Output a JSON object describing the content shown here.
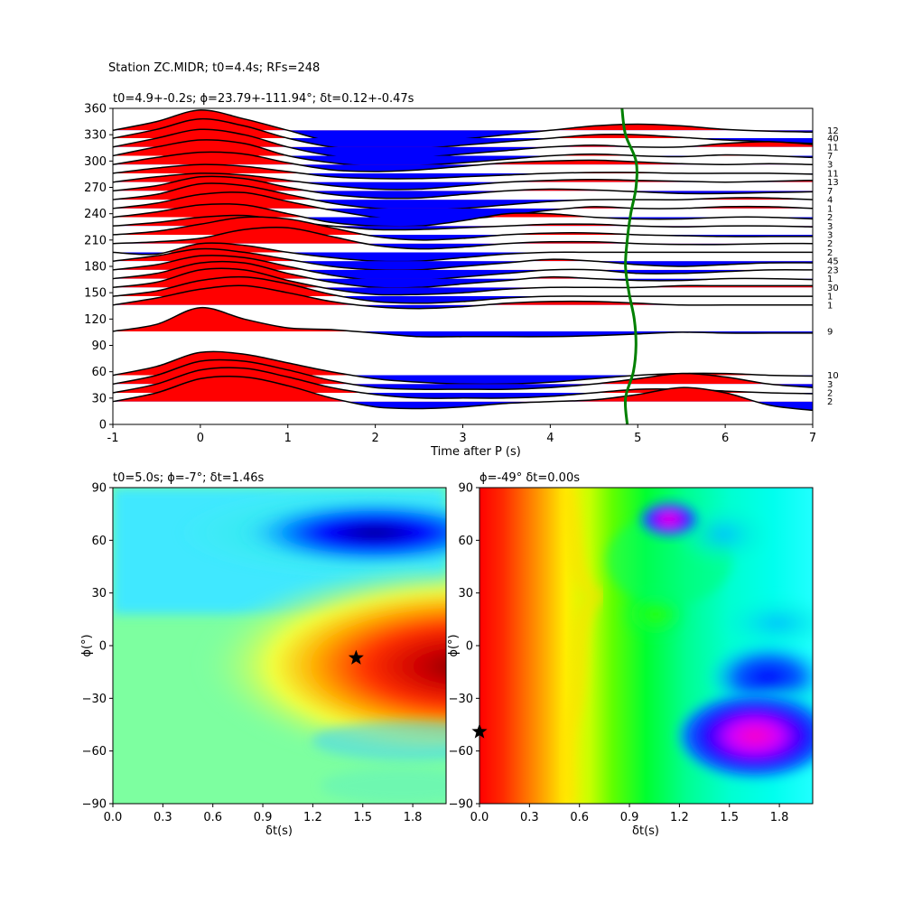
{
  "figure_title": "Station ZC.MIDR; t0=4.4s; RFs=248",
  "colors": {
    "positive_fill": "#ff0000",
    "negative_fill": "#0000ff",
    "trace_line": "#000000",
    "t0_curve": "#008000",
    "colormap": "jet (left) / hsv (right)"
  },
  "chart_data": [
    {
      "type": "line",
      "subtype": "wiggle-traces-by-backazimuth",
      "title": "t0=4.9+-0.2s; ϕ=23.79+-111.94°; δt=0.12+-0.47s",
      "xlabel": "Time after P (s)",
      "ylabel": "",
      "xlim": [
        -1,
        7
      ],
      "ylim": [
        0,
        360
      ],
      "xticks": [
        "-1",
        "0",
        "1",
        "2",
        "3",
        "4",
        "5",
        "6",
        "7"
      ],
      "yticks": [
        "0",
        "30",
        "60",
        "90",
        "120",
        "150",
        "180",
        "210",
        "240",
        "270",
        "300",
        "330",
        "360"
      ],
      "grid": false,
      "legend": "none",
      "trace_x_grid": [
        -1.0,
        -0.5,
        0.0,
        0.5,
        1.0,
        1.5,
        2.0,
        2.5,
        3.0,
        3.5,
        4.0,
        4.5,
        5.0,
        5.5,
        6.0,
        6.5,
        7.0
      ],
      "traces": [
        {
          "baz": 335,
          "count": "12",
          "y": [
            335,
            345,
            358,
            348,
            335,
            322,
            320,
            322,
            325,
            330,
            335,
            340,
            342,
            340,
            336,
            334,
            333
          ]
        },
        {
          "baz": 326,
          "count": "40",
          "y": [
            326,
            336,
            348,
            340,
            326,
            316,
            312,
            314,
            318,
            322,
            326,
            330,
            330,
            327,
            324,
            322,
            320
          ]
        },
        {
          "baz": 316,
          "count": "11",
          "y": [
            316,
            326,
            336,
            330,
            316,
            306,
            302,
            304,
            308,
            312,
            316,
            318,
            316,
            316,
            320,
            322,
            319
          ]
        },
        {
          "baz": 306,
          "count": "7",
          "y": [
            306,
            316,
            324,
            320,
            306,
            298,
            294,
            295,
            298,
            302,
            306,
            308,
            306,
            305,
            307,
            306,
            304
          ]
        },
        {
          "baz": 296,
          "count": "3",
          "y": [
            296,
            304,
            310,
            308,
            298,
            290,
            288,
            290,
            294,
            298,
            300,
            301,
            299,
            297,
            296,
            297,
            296
          ]
        },
        {
          "baz": 286,
          "count": "11",
          "y": [
            286,
            292,
            296,
            294,
            288,
            282,
            280,
            280,
            282,
            284,
            286,
            287,
            287,
            286,
            286,
            286,
            285
          ]
        },
        {
          "baz": 276,
          "count": "13",
          "y": [
            276,
            282,
            286,
            284,
            278,
            272,
            268,
            268,
            272,
            276,
            278,
            279,
            278,
            277,
            276,
            277,
            278
          ]
        },
        {
          "baz": 266,
          "count": "7",
          "y": [
            266,
            272,
            282,
            280,
            270,
            262,
            258,
            258,
            262,
            266,
            268,
            267,
            265,
            263,
            263,
            264,
            265
          ]
        },
        {
          "baz": 256,
          "count": "4",
          "y": [
            256,
            262,
            274,
            272,
            262,
            252,
            246,
            244,
            246,
            250,
            254,
            256,
            256,
            256,
            258,
            258,
            256
          ]
        },
        {
          "baz": 246,
          "count": "1",
          "y": [
            246,
            252,
            262,
            264,
            254,
            244,
            236,
            232,
            234,
            238,
            244,
            248,
            246,
            246,
            248,
            248,
            246
          ]
        },
        {
          "baz": 236,
          "count": "2",
          "y": [
            236,
            242,
            250,
            250,
            240,
            230,
            226,
            226,
            232,
            240,
            240,
            236,
            234,
            234,
            236,
            236,
            234
          ]
        },
        {
          "baz": 226,
          "count": "3",
          "y": [
            226,
            230,
            236,
            238,
            232,
            226,
            222,
            222,
            224,
            226,
            228,
            228,
            226,
            225,
            226,
            226,
            225
          ]
        },
        {
          "baz": 216,
          "count": "3",
          "y": [
            216,
            220,
            228,
            236,
            234,
            224,
            214,
            210,
            212,
            216,
            218,
            218,
            216,
            215,
            214,
            214,
            214
          ]
        },
        {
          "baz": 206,
          "count": "2",
          "y": [
            206,
            208,
            212,
            222,
            224,
            214,
            204,
            200,
            202,
            206,
            208,
            208,
            206,
            205,
            205,
            206,
            206
          ]
        },
        {
          "baz": 196,
          "count": "2",
          "y": [
            196,
            194,
            206,
            204,
            196,
            190,
            186,
            186,
            190,
            194,
            196,
            196,
            196,
            196,
            196,
            196,
            196
          ]
        },
        {
          "baz": 186,
          "count": "45",
          "y": [
            186,
            192,
            200,
            196,
            188,
            180,
            176,
            176,
            180,
            184,
            188,
            186,
            182,
            180,
            182,
            184,
            184
          ]
        },
        {
          "baz": 176,
          "count": "23",
          "y": [
            176,
            182,
            192,
            190,
            180,
            170,
            164,
            164,
            168,
            172,
            176,
            176,
            172,
            172,
            174,
            176,
            176
          ]
        },
        {
          "baz": 166,
          "count": "1",
          "y": [
            166,
            172,
            184,
            184,
            172,
            162,
            156,
            156,
            160,
            164,
            168,
            166,
            164,
            164,
            166,
            166,
            165
          ]
        },
        {
          "baz": 156,
          "count": "30",
          "y": [
            156,
            162,
            176,
            176,
            164,
            154,
            148,
            148,
            150,
            154,
            156,
            156,
            156,
            158,
            158,
            158,
            158
          ]
        },
        {
          "baz": 146,
          "count": "1",
          "y": [
            146,
            152,
            164,
            168,
            160,
            148,
            140,
            138,
            140,
            144,
            146,
            146,
            146,
            146,
            146,
            146,
            146
          ]
        },
        {
          "baz": 136,
          "count": "1",
          "y": [
            136,
            144,
            154,
            158,
            150,
            140,
            134,
            132,
            134,
            138,
            140,
            140,
            138,
            136,
            136,
            136,
            136
          ]
        },
        {
          "baz": 106,
          "count": "9",
          "y": [
            106,
            114,
            133,
            120,
            110,
            108,
            104,
            100,
            100,
            100,
            100,
            101,
            103,
            105,
            104,
            104,
            104
          ]
        },
        {
          "baz": 56,
          "count": "10",
          "y": [
            56,
            66,
            82,
            80,
            70,
            60,
            52,
            48,
            46,
            46,
            48,
            52,
            56,
            58,
            58,
            56,
            55
          ]
        },
        {
          "baz": 46,
          "count": "3",
          "y": [
            46,
            56,
            72,
            72,
            62,
            50,
            42,
            40,
            40,
            40,
            42,
            46,
            52,
            58,
            54,
            46,
            42
          ]
        },
        {
          "baz": 36,
          "count": "2",
          "y": [
            36,
            46,
            62,
            64,
            54,
            42,
            34,
            30,
            30,
            30,
            32,
            36,
            40,
            40,
            38,
            36,
            35
          ]
        },
        {
          "baz": 26,
          "count": "2",
          "y": [
            26,
            36,
            52,
            54,
            44,
            30,
            20,
            18,
            20,
            24,
            26,
            28,
            34,
            42,
            36,
            22,
            16
          ]
        }
      ],
      "t0_curve": {
        "baz": [
          0,
          30,
          60,
          90,
          120,
          150,
          180,
          210,
          240,
          270,
          300,
          330,
          360
        ],
        "t": [
          4.88,
          4.86,
          4.95,
          4.98,
          4.96,
          4.9,
          4.86,
          4.88,
          4.92,
          4.98,
          4.98,
          4.86,
          4.82
        ]
      }
    },
    {
      "type": "heatmap",
      "title": "t0=5.0s; ϕ=-7°; δt=1.46s",
      "xlabel": "δt(s)",
      "ylabel": "ϕ(°)",
      "xlim": [
        0,
        2
      ],
      "ylim": [
        -90,
        90
      ],
      "xticks": [
        "0.0",
        "0.3",
        "0.6",
        "0.9",
        "1.2",
        "1.5",
        "1.8"
      ],
      "yticks": [
        "−90",
        "−60",
        "−30",
        "0",
        "30",
        "60",
        "90"
      ],
      "colormap": "jet",
      "best": {
        "dt": 1.46,
        "phi": -7
      }
    },
    {
      "type": "heatmap",
      "title": "ϕ=-49° δt=0.00s",
      "xlabel": "δt(s)",
      "ylabel": "ϕ(°)",
      "xlim": [
        0,
        2
      ],
      "ylim": [
        -90,
        90
      ],
      "xticks": [
        "0.0",
        "0.3",
        "0.6",
        "0.9",
        "1.2",
        "1.5",
        "1.8"
      ],
      "yticks": [
        "−90",
        "−60",
        "−30",
        "0",
        "30",
        "60",
        "90"
      ],
      "colormap": "hsv",
      "best": {
        "dt": 0.0,
        "phi": -49
      }
    }
  ]
}
